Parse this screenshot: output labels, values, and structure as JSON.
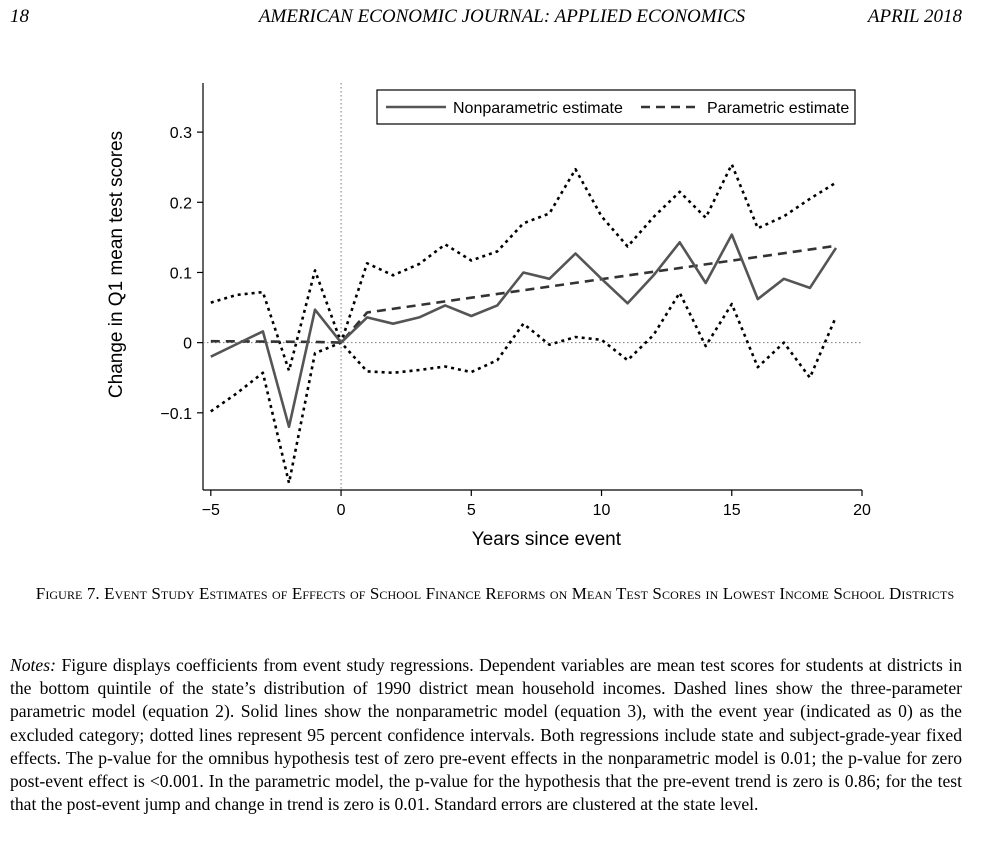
{
  "header": {
    "page_number": "18",
    "journal": "AMERICAN ECONOMIC JOURNAL: APPLIED ECONOMICS",
    "date": "APRIL 2018"
  },
  "caption": "Figure 7. Event Study Estimates of Effects of School Finance Reforms on Mean Test Scores in Lowest Income School Districts",
  "notes": {
    "label": "Notes:",
    "text": "Figure displays coefficients from event study regressions. Dependent variables are mean test scores for students at districts in the bottom quintile of the state’s distribution of 1990 district mean household incomes. Dashed lines show the three-parameter parametric model (equation 2). Solid lines show the nonparametric model (equation 3), with the event year (indicated as 0) as the excluded category; dotted lines represent 95 percent confidence intervals. Both regressions include state and subject-grade-year fixed effects. The p-value for the omnibus hypothesis test of zero pre-event effects in the nonparametric model is 0.01; the p-value for zero post-event effect is <0.001. In the parametric model, the p-value for the hypothesis that the pre-event trend is zero is 0.86; for the test that the post-event jump and change in trend is zero is 0.01. Standard errors are clustered at the state level."
  },
  "chart_data": {
    "type": "line",
    "title": "",
    "xlabel": "Years since event",
    "ylabel": "Change in Q1 mean test scores",
    "xlim": [
      -5.3,
      20
    ],
    "ylim": [
      -0.21,
      0.37
    ],
    "xticks": [
      -5,
      0,
      5,
      10,
      15,
      20
    ],
    "xtick_labels": [
      "−5",
      "0",
      "5",
      "10",
      "15",
      "20"
    ],
    "yticks": [
      -0.1,
      0,
      0.1,
      0.2,
      0.3
    ],
    "ytick_labels": [
      "−0.1",
      "0",
      "0.1",
      "0.2",
      "0.3"
    ],
    "reference_lines": {
      "vertical_x": 0,
      "horizontal_y": 0,
      "style": "dotted"
    },
    "legend_position": "top-right",
    "x": [
      -5,
      -4,
      -3,
      -2,
      -1,
      0,
      1,
      2,
      3,
      4,
      5,
      6,
      7,
      8,
      9,
      10,
      11,
      12,
      13,
      14,
      15,
      16,
      17,
      18,
      19
    ],
    "series": [
      {
        "name": "Nonparametric estimate",
        "style": "solid",
        "color": "#555555",
        "values": [
          -0.02,
          -0.002,
          0.016,
          -0.12,
          0.047,
          0.0,
          0.036,
          0.027,
          0.036,
          0.053,
          0.038,
          0.053,
          0.1,
          0.091,
          0.127,
          0.091,
          0.056,
          0.096,
          0.143,
          0.085,
          0.154,
          0.062,
          0.091,
          0.078,
          0.135
        ]
      },
      {
        "name": "Parametric estimate",
        "style": "dashed",
        "color": "#333333",
        "x": [
          -5,
          -1,
          0,
          1,
          19
        ],
        "values": [
          0.002,
          0.001,
          0.0,
          0.043,
          0.138
        ]
      },
      {
        "name": "95% CI upper",
        "style": "dotted",
        "color": "#000000",
        "values": [
          0.057,
          0.068,
          0.072,
          -0.04,
          0.103,
          0.0,
          0.113,
          0.096,
          0.112,
          0.14,
          0.117,
          0.13,
          0.17,
          0.184,
          0.247,
          0.18,
          0.137,
          0.179,
          0.215,
          0.178,
          0.254,
          0.163,
          0.18,
          0.205,
          0.228
        ]
      },
      {
        "name": "95% CI lower",
        "style": "dotted",
        "color": "#000000",
        "values": [
          -0.098,
          -0.072,
          -0.043,
          -0.2,
          -0.015,
          0.0,
          -0.041,
          -0.043,
          -0.039,
          -0.034,
          -0.042,
          -0.025,
          0.027,
          -0.003,
          0.008,
          0.004,
          -0.025,
          0.011,
          0.071,
          -0.005,
          0.055,
          -0.035,
          0.0,
          -0.05,
          0.037
        ]
      }
    ]
  }
}
